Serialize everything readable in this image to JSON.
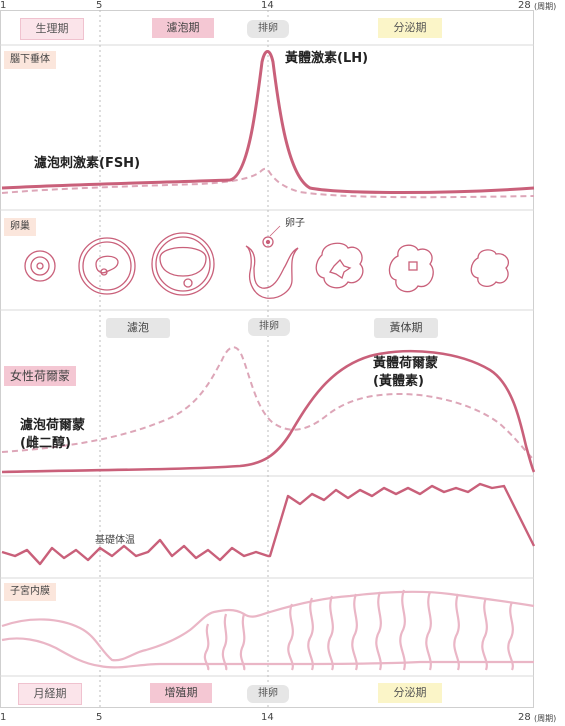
{
  "axis": {
    "day_start": "1",
    "day_5": "5",
    "day_14": "14",
    "day_end": "28",
    "unit": "(周期)"
  },
  "top_phases": {
    "menstrual": "生理期",
    "follicular": "濾泡期",
    "ovulation": "排卵",
    "secretory": "分泌期"
  },
  "pituitary": {
    "section": "腦下垂体",
    "lh_label": "黃體激素(LH)",
    "fsh_label": "濾泡刺激素(FSH)"
  },
  "ovary": {
    "section": "卵巢",
    "egg_label": "卵子"
  },
  "ovary_phases": {
    "follicular": "濾泡",
    "ovulation": "排卵",
    "luteal": "黃体期"
  },
  "hormones": {
    "section": "女性荷爾蒙",
    "progesterone_line1": "黃體荷爾蒙",
    "progesterone_line2": "(黃體素)",
    "estrogen_line1": "濾泡荷爾蒙",
    "estrogen_line2": "(雌二醇)"
  },
  "temperature": {
    "label": "基礎体温"
  },
  "uterus": {
    "section": "子宮内膜"
  },
  "bottom_phases": {
    "menstrual": "月経期",
    "proliferative": "增殖期",
    "ovulation": "排卵",
    "secretory": "分泌期"
  },
  "colors": {
    "lh_curve": "#c9607a",
    "fsh_curve": "#dda6b8",
    "pink_chip": "#f4c7d3",
    "light_chip": "#fbe4ea",
    "gray_chip": "#e6e6e6",
    "yellow_chip": "#fbf5c8",
    "section_tag": "#fbe6dc"
  }
}
